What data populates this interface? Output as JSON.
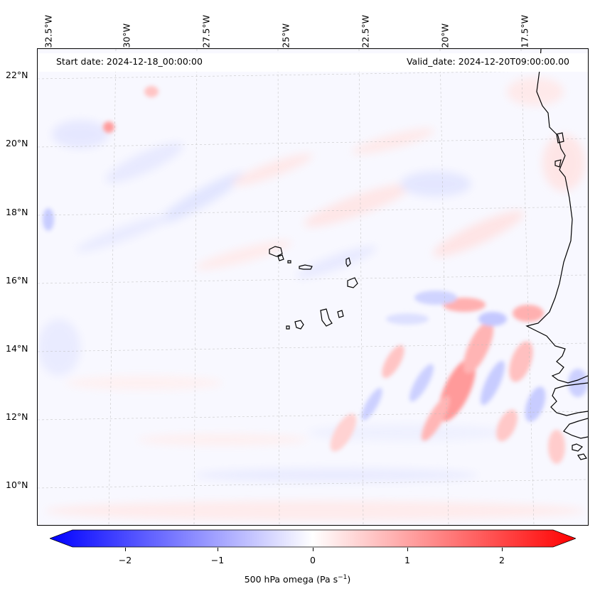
{
  "map": {
    "start_date": "Start date: 2024-12-18_00:00:00",
    "valid_date": "Valid_date: 2024-12-20T09:00:00.00",
    "lon_labels": [
      "32.5°W",
      "30°W",
      "27.5°W",
      "25°W",
      "22.5°W",
      "20°W",
      "17.5°W"
    ],
    "lat_labels": [
      "22°N",
      "20°N",
      "18°N",
      "16°N",
      "14°N",
      "12°N",
      "10°N"
    ],
    "coastline_color": "#000000",
    "gridline_style": "dashed"
  },
  "colorbar": {
    "variable": "500 hPa omega (Pa s",
    "unit_exponent": "−1",
    "unit_suffix": ")",
    "ticks": [
      "−2",
      "−1",
      "0",
      "1",
      "2"
    ],
    "tick_values": [
      -2,
      -1,
      0,
      1,
      2
    ],
    "range": [
      -2.6,
      2.6
    ],
    "colormap": "bwr",
    "extend": "both",
    "color_min": "#0000ff",
    "color_mid": "#ffffff",
    "color_max": "#ff0000"
  }
}
